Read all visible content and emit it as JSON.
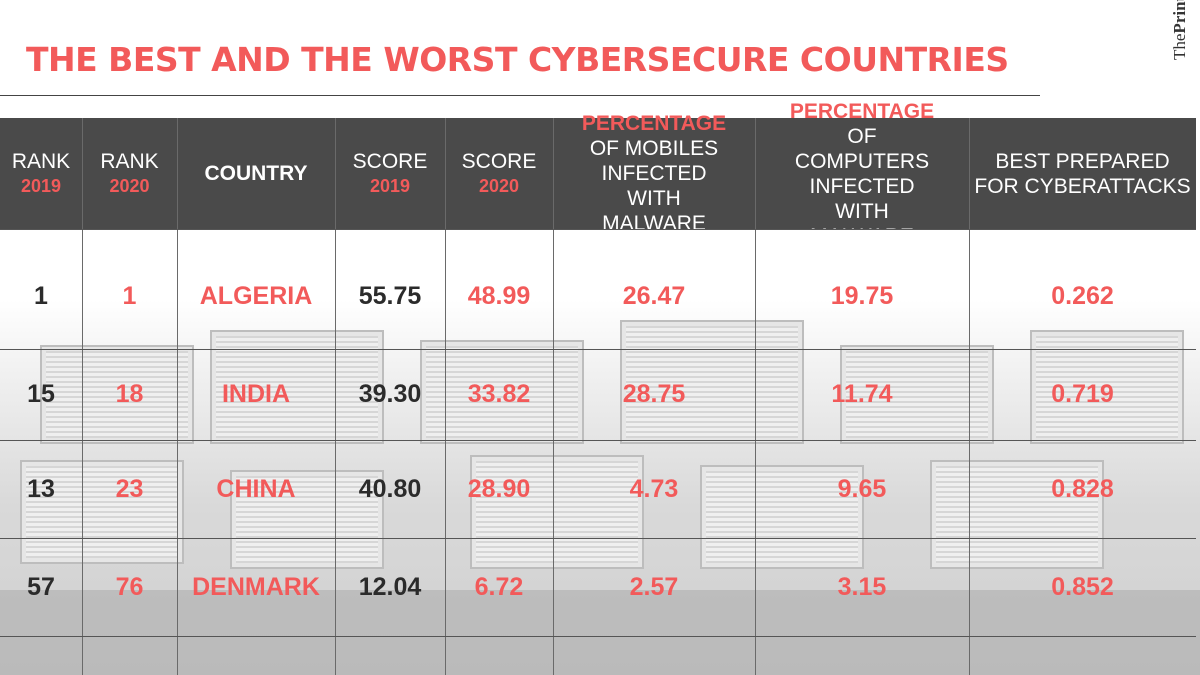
{
  "title": "THE BEST AND THE WORST CYBERSECURE COUNTRIES",
  "brand": {
    "prefix": "The",
    "name": "Print"
  },
  "colors": {
    "accent": "#f25a5a",
    "header_bg": "#4a4a4a",
    "dark_text": "#2b2b2b"
  },
  "chart_data": {
    "type": "table",
    "columns": [
      {
        "line1": "RANK",
        "line2": "2019"
      },
      {
        "line1": "RANK",
        "line2": "2020"
      },
      {
        "line1": "COUNTRY",
        "line2": ""
      },
      {
        "line1": "SCORE",
        "line2": "2019"
      },
      {
        "line1": "SCORE",
        "line2": "2020"
      },
      {
        "line1": "PERCENTAGE",
        "line2": "OF MOBILES INFECTED WITH MALWARE"
      },
      {
        "line1": "PERCENTAGE",
        "line2": "OF COMPUTERS INFECTED WITH MALWARE"
      },
      {
        "line1": "BEST PREPARED",
        "line2": "FOR CYBERATTACKS"
      }
    ],
    "rows": [
      [
        "1",
        "1",
        "ALGERIA",
        "55.75",
        "48.99",
        "26.47",
        "19.75",
        "0.262"
      ],
      [
        "15",
        "18",
        "INDIA",
        "39.30",
        "33.82",
        "28.75",
        "11.74",
        "0.719"
      ],
      [
        "13",
        "23",
        "CHINA",
        "40.80",
        "28.90",
        "4.73",
        "9.65",
        "0.828"
      ],
      [
        "57",
        "76",
        "DENMARK",
        "12.04",
        "6.72",
        "2.57",
        "3.15",
        "0.852"
      ]
    ]
  }
}
